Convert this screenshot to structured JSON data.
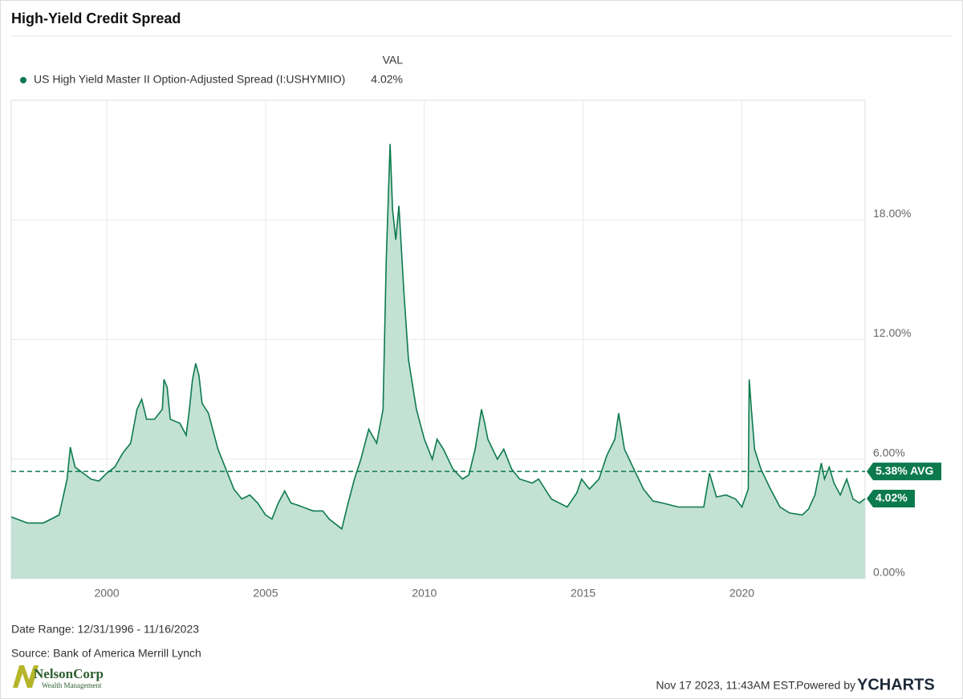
{
  "chart_data": {
    "type": "line",
    "title": "High-Yield Credit Spread",
    "legend_header": "VAL",
    "x": [
      1996.99,
      1997.5,
      1998.0,
      1998.5,
      1998.75,
      1998.85,
      1999.0,
      1999.5,
      1999.75,
      2000.0,
      2000.25,
      2000.5,
      2000.75,
      2000.95,
      2001.1,
      2001.25,
      2001.5,
      2001.75,
      2001.8,
      2001.9,
      2002.0,
      2002.3,
      2002.5,
      2002.6,
      2002.7,
      2002.8,
      2002.9,
      2003.0,
      2003.2,
      2003.5,
      2003.75,
      2004.0,
      2004.25,
      2004.5,
      2004.75,
      2005.0,
      2005.2,
      2005.4,
      2005.6,
      2005.8,
      2006.0,
      2006.5,
      2006.8,
      2007.0,
      2007.4,
      2007.6,
      2007.8,
      2008.0,
      2008.25,
      2008.5,
      2008.7,
      2008.8,
      2008.92,
      2009.0,
      2009.1,
      2009.2,
      2009.35,
      2009.5,
      2009.75,
      2010.0,
      2010.25,
      2010.4,
      2010.6,
      2010.9,
      2011.2,
      2011.4,
      2011.6,
      2011.8,
      2011.9,
      2012.0,
      2012.3,
      2012.5,
      2012.75,
      2013.0,
      2013.4,
      2013.6,
      2014.0,
      2014.5,
      2014.8,
      2014.95,
      2015.2,
      2015.5,
      2015.75,
      2016.0,
      2016.12,
      2016.3,
      2016.6,
      2016.9,
      2017.2,
      2017.5,
      2018.0,
      2018.5,
      2018.8,
      2018.98,
      2019.2,
      2019.5,
      2019.8,
      2020.0,
      2020.2,
      2020.23,
      2020.3,
      2020.4,
      2020.6,
      2020.9,
      2021.2,
      2021.5,
      2021.9,
      2022.1,
      2022.3,
      2022.5,
      2022.6,
      2022.75,
      2022.9,
      2023.1,
      2023.3,
      2023.5,
      2023.7,
      2023.88
    ],
    "series": [
      {
        "name": "US High Yield Master II Option-Adjusted Spread (I:USHYMIIO)",
        "color": "#0d7a4e",
        "fill": "#c3e1d5",
        "value_label": "4.02%",
        "values": [
          3.1,
          2.8,
          2.8,
          3.2,
          5.0,
          6.6,
          5.6,
          5.0,
          4.9,
          5.3,
          5.6,
          6.3,
          6.8,
          8.5,
          9.0,
          8.0,
          8.0,
          8.5,
          10.0,
          9.6,
          8.0,
          7.8,
          7.2,
          8.5,
          10.0,
          10.8,
          10.2,
          8.8,
          8.3,
          6.5,
          5.5,
          4.5,
          4.0,
          4.2,
          3.8,
          3.2,
          3.0,
          3.8,
          4.4,
          3.8,
          3.7,
          3.4,
          3.4,
          3.0,
          2.5,
          3.8,
          5.0,
          6.0,
          7.5,
          6.8,
          8.5,
          16.0,
          21.8,
          18.5,
          17.0,
          18.7,
          14.5,
          11.0,
          8.5,
          7.0,
          6.0,
          7.0,
          6.5,
          5.5,
          5.0,
          5.2,
          6.5,
          8.5,
          7.8,
          7.0,
          6.0,
          6.5,
          5.5,
          5.0,
          4.8,
          5.0,
          4.0,
          3.6,
          4.3,
          5.0,
          4.5,
          5.0,
          6.2,
          7.0,
          8.3,
          6.5,
          5.5,
          4.5,
          3.9,
          3.8,
          3.6,
          3.6,
          3.6,
          5.3,
          4.1,
          4.2,
          4.0,
          3.6,
          4.5,
          10.0,
          8.5,
          6.5,
          5.5,
          4.5,
          3.6,
          3.3,
          3.2,
          3.5,
          4.2,
          5.8,
          5.0,
          5.6,
          4.8,
          4.2,
          5.0,
          4.0,
          3.8,
          4.02
        ]
      }
    ],
    "average": {
      "value": 5.38,
      "label": "5.38% AVG"
    },
    "xlim": [
      1996.99,
      2023.88
    ],
    "xticks": [
      2000,
      2005,
      2010,
      2015,
      2020
    ],
    "ylim": [
      0,
      24
    ],
    "yticks": [
      {
        "value": 0,
        "label": "0.00%"
      },
      {
        "value": 6,
        "label": "6.00%"
      },
      {
        "value": 12,
        "label": "12.00%"
      },
      {
        "value": 18,
        "label": "18.00%"
      }
    ],
    "grid": true
  },
  "footer": {
    "date_range": "Date Range: 12/31/1996 - 11/16/2023",
    "source": "Source: Bank of America Merrill Lynch",
    "logo_name": "NelsonCorp",
    "logo_sub": "Wealth Management",
    "timestamp": "Nov 17 2023, 11:43AM EST.",
    "powered": "Powered by",
    "brand": "YCHARTS"
  }
}
